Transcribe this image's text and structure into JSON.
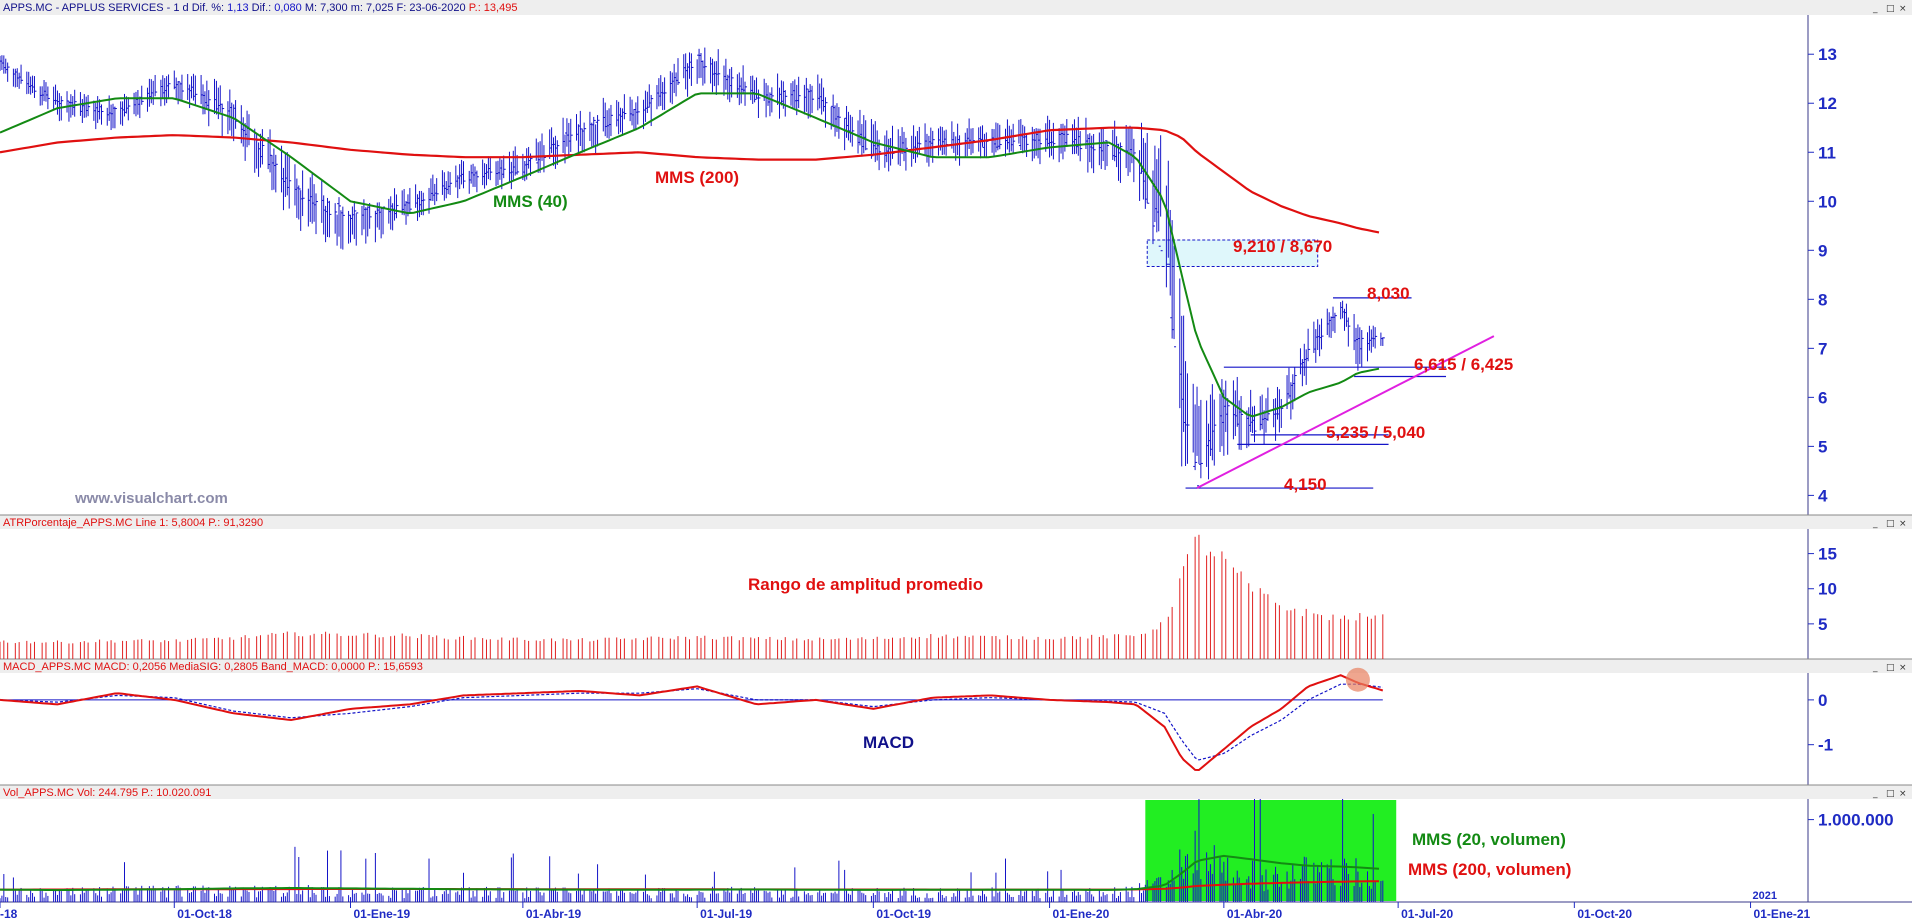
{
  "colors": {
    "price": "#1414c8",
    "mms40": "#138a13",
    "mms200": "#e01010",
    "atr": "#e02020",
    "macd": "#e01010",
    "macd_signal": "#1414c8",
    "volume": "#1414c8",
    "trend": "#e020e0",
    "axis_text": "#1f2bc4",
    "ann_red": "#e01010",
    "ann_green": "#138a13",
    "ann_blue": "#10108a",
    "highlight_green": "#22ee22",
    "zone_fill": "#dff7fb"
  },
  "panels": {
    "price": {
      "header_parts": [
        {
          "text": "APPS.MC - APPLUS SERVICES - 1 d  Dif. %: ",
          "color": "#10108a"
        },
        {
          "text": "1,13",
          "color": "#1414c8"
        },
        {
          "text": "  Dif.: ",
          "color": "#10108a"
        },
        {
          "text": "0,080",
          "color": "#1414c8"
        },
        {
          "text": "  M: 7,300  m: 7,025  F: 23-06-2020  ",
          "color": "#10108a"
        },
        {
          "text": "P.: 13,495",
          "color": "#e01010"
        }
      ],
      "y_ticks": [
        "13",
        "12",
        "11",
        "10",
        "9",
        "8",
        "7",
        "6",
        "5",
        "4"
      ],
      "watermark": "www.visualchart.com"
    },
    "atr": {
      "header_parts": [
        {
          "text": "ATRPorcentaje_APPS.MC  Line 1: 5,8004  P.: 91,3290",
          "color": "#e01010"
        }
      ],
      "y_ticks": [
        "15",
        "10",
        "5"
      ]
    },
    "macd": {
      "header_parts": [
        {
          "text": "MACD_APPS.MC  MACD: 0,2056  MediaSIG: 0,2805  Band_MACD: 0,0000  P.: 15,6593",
          "color": "#e01010"
        }
      ],
      "y_ticks": [
        "0",
        "-1"
      ]
    },
    "volume": {
      "header_parts": [
        {
          "text": "Vol_APPS.MC  Vol: 244.795  P.: 10.020.091",
          "color": "#e01010"
        }
      ],
      "y_ticks": [
        "1.000.000"
      ]
    }
  },
  "window_buttons": [
    "_",
    "□",
    "×"
  ],
  "x_axis": {
    "labels": [
      "-18",
      "01-Oct-18",
      "01-Ene-19",
      "01-Abr-19",
      "01-Jul-19",
      "01-Oct-19",
      "01-Ene-20",
      "01-Abr-20",
      "01-Jul-20",
      "01-Oct-20",
      "01-Ene-21"
    ],
    "year_marker": "2021"
  },
  "annotations": {
    "mms40": "MMS (40)",
    "mms200": "MMS (200)",
    "zone": "9,210 / 8,670",
    "level_8030": "8,030",
    "level_6615": "6,615 / 6,425",
    "level_5235": "5,235 / 5,040",
    "level_4150": "4,150",
    "atr_title": "Rango de amplitud promedio",
    "macd_title": "MACD",
    "vol_mms20": "MMS (20, volumen)",
    "vol_mms200": "MMS (200, volumen)"
  },
  "chart_data": {
    "type": "bar",
    "ticker": "APPS.MC",
    "x_range": [
      "2018-07-02",
      "2021-01-31"
    ],
    "dates": [
      "2018-07-02",
      "2018-08-01",
      "2018-09-01",
      "2018-10-01",
      "2018-11-01",
      "2018-12-01",
      "2019-01-01",
      "2019-02-01",
      "2019-03-01",
      "2019-04-01",
      "2019-05-01",
      "2019-06-01",
      "2019-07-01",
      "2019-08-01",
      "2019-09-01",
      "2019-10-01",
      "2019-11-01",
      "2019-12-01",
      "2020-01-01",
      "2020-02-01",
      "2020-02-15",
      "2020-03-01",
      "2020-03-10",
      "2020-03-18",
      "2020-04-01",
      "2020-04-15",
      "2020-05-01",
      "2020-05-15",
      "2020-06-01",
      "2020-06-10",
      "2020-06-23"
    ],
    "close": [
      12.8,
      12.0,
      11.8,
      12.4,
      11.8,
      10.2,
      9.7,
      9.9,
      10.5,
      10.7,
      11.5,
      11.8,
      12.9,
      12.1,
      12.2,
      11.0,
      11.2,
      11.2,
      11.3,
      11.1,
      10.9,
      9.0,
      6.0,
      4.3,
      5.8,
      5.4,
      5.8,
      6.9,
      7.9,
      7.1,
      7.2
    ],
    "high": [
      13.0,
      12.3,
      12.1,
      12.7,
      12.2,
      10.8,
      9.9,
      10.2,
      10.8,
      11.1,
      11.8,
      12.2,
      13.2,
      12.5,
      12.5,
      11.5,
      11.5,
      11.6,
      11.7,
      11.5,
      11.5,
      11.1,
      8.2,
      5.9,
      6.5,
      6.0,
      6.2,
      7.3,
      8.03,
      7.6,
      7.3
    ],
    "low": [
      12.6,
      11.7,
      11.5,
      12.1,
      11.3,
      9.6,
      9.0,
      9.6,
      10.2,
      10.4,
      11.0,
      11.5,
      12.4,
      11.8,
      11.7,
      10.6,
      10.8,
      10.9,
      10.9,
      10.6,
      10.3,
      8.7,
      4.8,
      4.15,
      5.0,
      5.04,
      5.3,
      6.4,
      7.5,
      6.6,
      7.02
    ],
    "mms40": [
      11.4,
      11.9,
      12.1,
      12.1,
      11.7,
      10.9,
      10.0,
      9.75,
      10.0,
      10.5,
      11.0,
      11.5,
      12.2,
      12.2,
      11.7,
      11.2,
      10.9,
      10.9,
      11.1,
      11.2,
      10.9,
      10.0,
      8.5,
      7.2,
      6.0,
      5.6,
      5.8,
      6.1,
      6.3,
      6.5,
      6.6
    ],
    "mms200": [
      11.0,
      11.2,
      11.3,
      11.35,
      11.3,
      11.2,
      11.05,
      10.95,
      10.9,
      10.9,
      10.95,
      11.0,
      10.9,
      10.85,
      10.85,
      10.95,
      11.1,
      11.25,
      11.45,
      11.5,
      11.5,
      11.45,
      11.3,
      11.0,
      10.6,
      10.2,
      9.9,
      9.7,
      9.55,
      9.45,
      9.35
    ],
    "atr_pct": [
      2.5,
      2.4,
      2.6,
      2.6,
      3.0,
      3.6,
      3.5,
      3.3,
      3.0,
      2.8,
      2.7,
      2.9,
      3.1,
      2.9,
      2.8,
      2.9,
      3.3,
      3.1,
      3.0,
      3.2,
      3.3,
      5.0,
      12.0,
      17.0,
      14.0,
      10.0,
      7.5,
      6.5,
      5.8,
      6.0,
      5.8
    ],
    "macd": [
      0.0,
      -0.1,
      0.15,
      0.0,
      -0.3,
      -0.45,
      -0.2,
      -0.1,
      0.1,
      0.15,
      0.2,
      0.1,
      0.3,
      -0.1,
      0.0,
      -0.2,
      0.05,
      0.1,
      0.0,
      -0.05,
      -0.1,
      -0.6,
      -1.3,
      -1.6,
      -1.1,
      -0.6,
      -0.2,
      0.3,
      0.55,
      0.38,
      0.21
    ],
    "macd_signal": [
      0.0,
      -0.05,
      0.1,
      0.05,
      -0.25,
      -0.4,
      -0.3,
      -0.15,
      0.05,
      0.1,
      0.15,
      0.15,
      0.25,
      0.0,
      0.0,
      -0.15,
      0.0,
      0.05,
      0.0,
      -0.03,
      -0.05,
      -0.3,
      -0.9,
      -1.35,
      -1.2,
      -0.8,
      -0.45,
      0.0,
      0.35,
      0.35,
      0.28
    ],
    "volume": [
      150000,
      140000,
      160000,
      170000,
      170000,
      180000,
      160000,
      150000,
      160000,
      150000,
      150000,
      140000,
      160000,
      150000,
      140000,
      150000,
      150000,
      150000,
      140000,
      150000,
      180000,
      300000,
      650000,
      800000,
      550000,
      450000,
      420000,
      480000,
      520000,
      450000,
      244795
    ],
    "vol_mms20": [
      150000,
      145000,
      150000,
      155000,
      165000,
      170000,
      165000,
      160000,
      155000,
      152000,
      150000,
      148000,
      150000,
      152000,
      148000,
      147000,
      148000,
      150000,
      148000,
      147000,
      155000,
      200000,
      350000,
      500000,
      560000,
      520000,
      470000,
      440000,
      430000,
      420000,
      400000
    ],
    "vol_mms200": [
      150000,
      152000,
      154000,
      155000,
      156000,
      157000,
      158000,
      158000,
      157000,
      156000,
      155000,
      154000,
      154000,
      153000,
      152000,
      152000,
      151000,
      151000,
      150000,
      150000,
      152000,
      160000,
      175000,
      195000,
      210000,
      222000,
      232000,
      240000,
      246000,
      250000,
      253000
    ],
    "levels": {
      "resistance_zone": [
        9.21,
        8.67
      ],
      "high": 8.03,
      "support_1": [
        6.615,
        6.425
      ],
      "support_2": [
        5.235,
        5.04
      ],
      "low": 4.15
    },
    "trendline": {
      "start": [
        "2020-03-18",
        4.15
      ],
      "end": [
        "2020-08-20",
        7.25
      ]
    },
    "price_ylim": [
      3.6,
      13.8
    ],
    "atr_ylim": [
      0,
      18.5
    ],
    "macd_ylim": [
      -1.9,
      0.6
    ],
    "volume_ylim": [
      0,
      1250000
    ],
    "volume_highlight": [
      "2020-02-20",
      "2020-06-30"
    ],
    "grid": false
  }
}
